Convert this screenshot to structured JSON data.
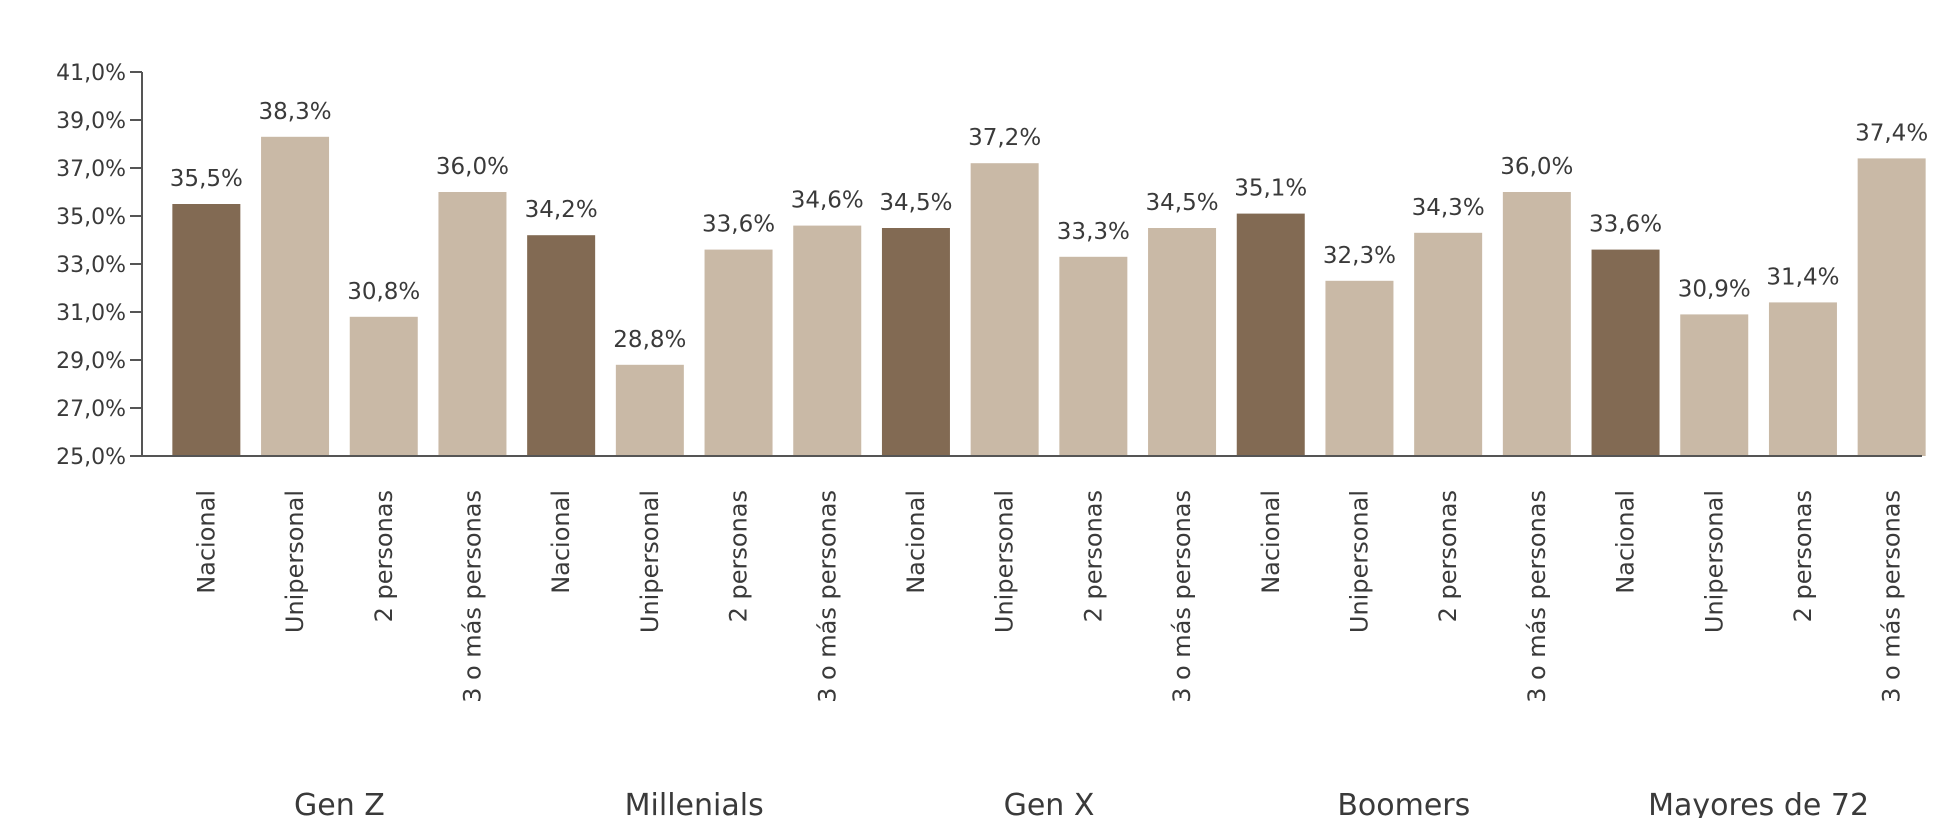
{
  "chart_data": {
    "type": "bar",
    "ylim": [
      25.0,
      41.0
    ],
    "yticks": [
      "25,0%",
      "27,0%",
      "29,0%",
      "31,0%",
      "33,0%",
      "35,0%",
      "37,0%",
      "39,0%",
      "41,0%"
    ],
    "ytick_values": [
      25,
      27,
      29,
      31,
      33,
      35,
      37,
      39,
      41
    ],
    "grid": false,
    "legend": "none",
    "groups": [
      {
        "name": "Gen Z",
        "bars": [
          {
            "category": "Nacional",
            "value": 35.5,
            "label": "35,5%",
            "kind": "nacional"
          },
          {
            "category": "Unipersonal",
            "value": 38.3,
            "label": "38,3%",
            "kind": "segment"
          },
          {
            "category": "2 personas",
            "value": 30.8,
            "label": "30,8%",
            "kind": "segment"
          },
          {
            "category": "3 o más personas",
            "value": 36.0,
            "label": "36,0%",
            "kind": "segment"
          }
        ]
      },
      {
        "name": "Millenials",
        "bars": [
          {
            "category": "Nacional",
            "value": 34.2,
            "label": "34,2%",
            "kind": "nacional"
          },
          {
            "category": "Unipersonal",
            "value": 28.8,
            "label": "28,8%",
            "kind": "segment"
          },
          {
            "category": "2 personas",
            "value": 33.6,
            "label": "33,6%",
            "kind": "segment"
          },
          {
            "category": "3 o más personas",
            "value": 34.6,
            "label": "34,6%",
            "kind": "segment"
          }
        ]
      },
      {
        "name": "Gen X",
        "bars": [
          {
            "category": "Nacional",
            "value": 34.5,
            "label": "34,5%",
            "kind": "nacional"
          },
          {
            "category": "Unipersonal",
            "value": 37.2,
            "label": "37,2%",
            "kind": "segment"
          },
          {
            "category": "2 personas",
            "value": 33.3,
            "label": "33,3%",
            "kind": "segment"
          },
          {
            "category": "3 o más personas",
            "value": 34.5,
            "label": "34,5%",
            "kind": "segment"
          }
        ]
      },
      {
        "name": "Boomers",
        "bars": [
          {
            "category": "Nacional",
            "value": 35.1,
            "label": "35,1%",
            "kind": "nacional"
          },
          {
            "category": "Unipersonal",
            "value": 32.3,
            "label": "32,3%",
            "kind": "segment"
          },
          {
            "category": "2 personas",
            "value": 34.3,
            "label": "34,3%",
            "kind": "segment"
          },
          {
            "category": "3 o más personas",
            "value": 36.0,
            "label": "36,0%",
            "kind": "segment"
          }
        ]
      },
      {
        "name": "Mayores de 72",
        "bars": [
          {
            "category": "Nacional",
            "value": 33.6,
            "label": "33,6%",
            "kind": "nacional"
          },
          {
            "category": "Unipersonal",
            "value": 30.9,
            "label": "30,9%",
            "kind": "segment"
          },
          {
            "category": "2 personas",
            "value": 31.4,
            "label": "31,4%",
            "kind": "segment"
          },
          {
            "category": "3 o más personas",
            "value": 37.4,
            "label": "37,4%",
            "kind": "segment"
          }
        ]
      }
    ],
    "colors": {
      "nacional": "#826a53",
      "segment": "#c9b9a6",
      "axis": "#555555",
      "text": "#3a3a3a"
    }
  }
}
